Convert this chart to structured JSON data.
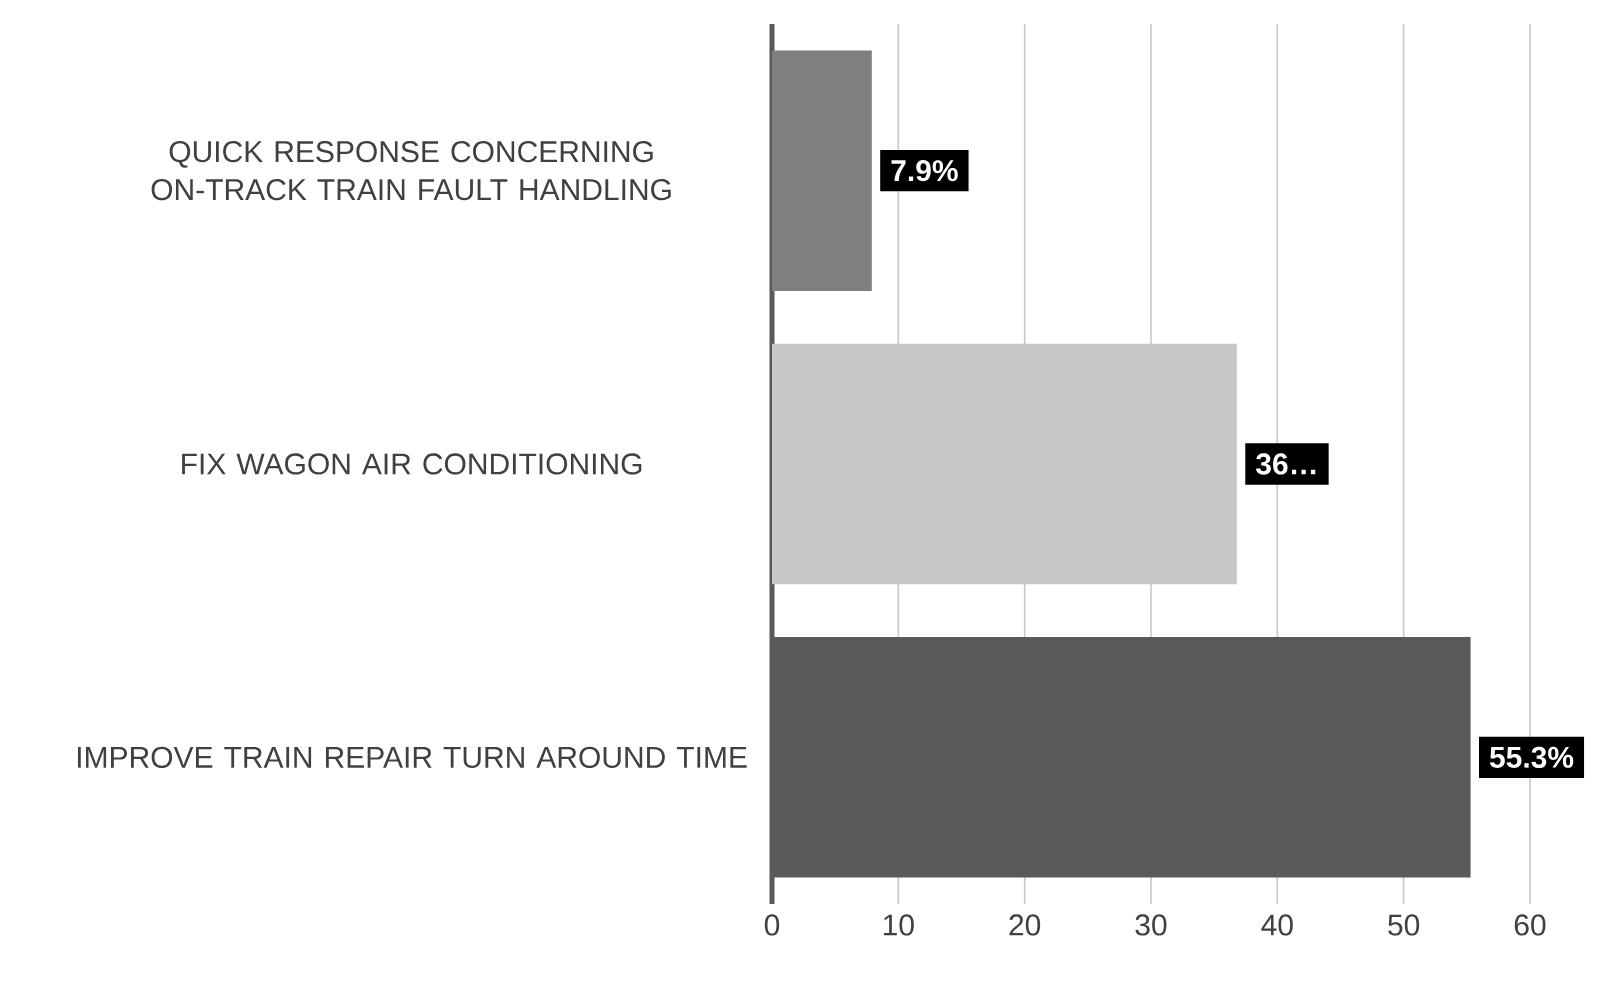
{
  "chart_data": {
    "type": "bar",
    "orientation": "horizontal",
    "categories": [
      "QUICK RESPONSE CONCERNING ON-TRACK TRAIN FAULT HANDLING",
      "FIX WAGON AIR CONDITIONING",
      "IMPROVE TRAIN REPAIR TURN AROUND TIME"
    ],
    "values": [
      7.9,
      36.8,
      55.3
    ],
    "colors": [
      "#7f7f7f",
      "#c8c8c8",
      "#5a5a5a"
    ],
    "value_labels": [
      "7.9%",
      "36…",
      "55.3%"
    ],
    "xlim": [
      0,
      60
    ],
    "xticks": [
      0,
      10,
      20,
      30,
      40,
      50,
      60
    ],
    "grid": "x"
  }
}
